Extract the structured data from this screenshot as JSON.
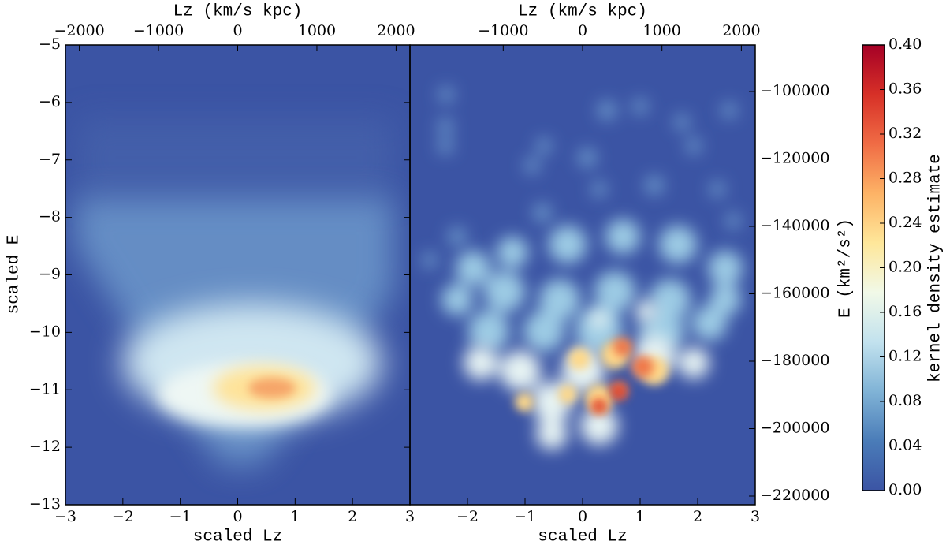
{
  "chart_data": [
    {
      "type": "heatmap",
      "xlabel": "scaled Lz",
      "xlim": [
        -3,
        3
      ],
      "xticks": [
        {
          "value": -3,
          "label": "−3"
        },
        {
          "value": -2,
          "label": "−2"
        },
        {
          "value": -1,
          "label": "−1"
        },
        0,
        1,
        2,
        3
      ],
      "x2label": "Lz (km/s kpc)",
      "x2lim": [
        -2175,
        2175
      ],
      "x2ticks": [
        {
          "value": -2000,
          "label": "−2000"
        },
        {
          "value": -1000,
          "label": "−1000"
        },
        0,
        1000,
        2000
      ],
      "ylabel": "scaled E",
      "ylim": [
        -13,
        -5
      ],
      "yticks": [
        {
          "value": -13,
          "label": "−13"
        },
        {
          "value": -12,
          "label": "−12"
        },
        {
          "value": -11,
          "label": "−11"
        },
        {
          "value": -10,
          "label": "−10"
        },
        {
          "value": -9,
          "label": "−9"
        },
        {
          "value": -8,
          "label": "−8"
        },
        {
          "value": -7,
          "label": "−7"
        },
        {
          "value": -6,
          "label": "−6"
        },
        {
          "value": -5,
          "label": "−5"
        }
      ]
    },
    {
      "type": "heatmap",
      "xlabel": "scaled Lz",
      "xlim": [
        -3,
        3
      ],
      "xticks": [
        {
          "value": -2,
          "label": "−2"
        },
        {
          "value": -1,
          "label": "−1"
        },
        0,
        1,
        2,
        3
      ],
      "x2label": "Lz (km/s kpc)",
      "x2lim": [
        -2175,
        2175
      ],
      "x2ticks": [
        {
          "value": -1000,
          "label": "−1000"
        },
        0,
        1000,
        2000
      ],
      "ylim": [
        -13,
        -5
      ],
      "y2label": "E (km²/s²)",
      "y2lim": [
        -222570,
        -86200
      ],
      "y2ticks": [
        {
          "value": -220000,
          "label": "−220000"
        },
        {
          "value": -200000,
          "label": "−200000"
        },
        {
          "value": -180000,
          "label": "−180000"
        },
        {
          "value": -160000,
          "label": "−160000"
        },
        {
          "value": -140000,
          "label": "−140000"
        },
        {
          "value": -120000,
          "label": "−120000"
        },
        {
          "value": -100000,
          "label": "−100000"
        }
      ],
      "colorbar": {
        "label": "kernel density estimate",
        "lim": [
          0,
          0.4
        ],
        "ticks": [
          {
            "value": 0,
            "label": "0.00"
          },
          0.04,
          0.08,
          0.12,
          0.16,
          {
            "value": 0.2,
            "label": "0.20"
          },
          0.24,
          0.28,
          0.32,
          0.36,
          {
            "value": 0.4,
            "label": "0.40"
          }
        ],
        "colors": [
          "#3b54a4",
          "#4a7cb8",
          "#80b3d6",
          "#c2e2ee",
          "#f1f9e8",
          "#fee79a",
          "#fdb366",
          "#f06c45",
          "#d73027",
          "#a50026"
        ]
      }
    }
  ]
}
